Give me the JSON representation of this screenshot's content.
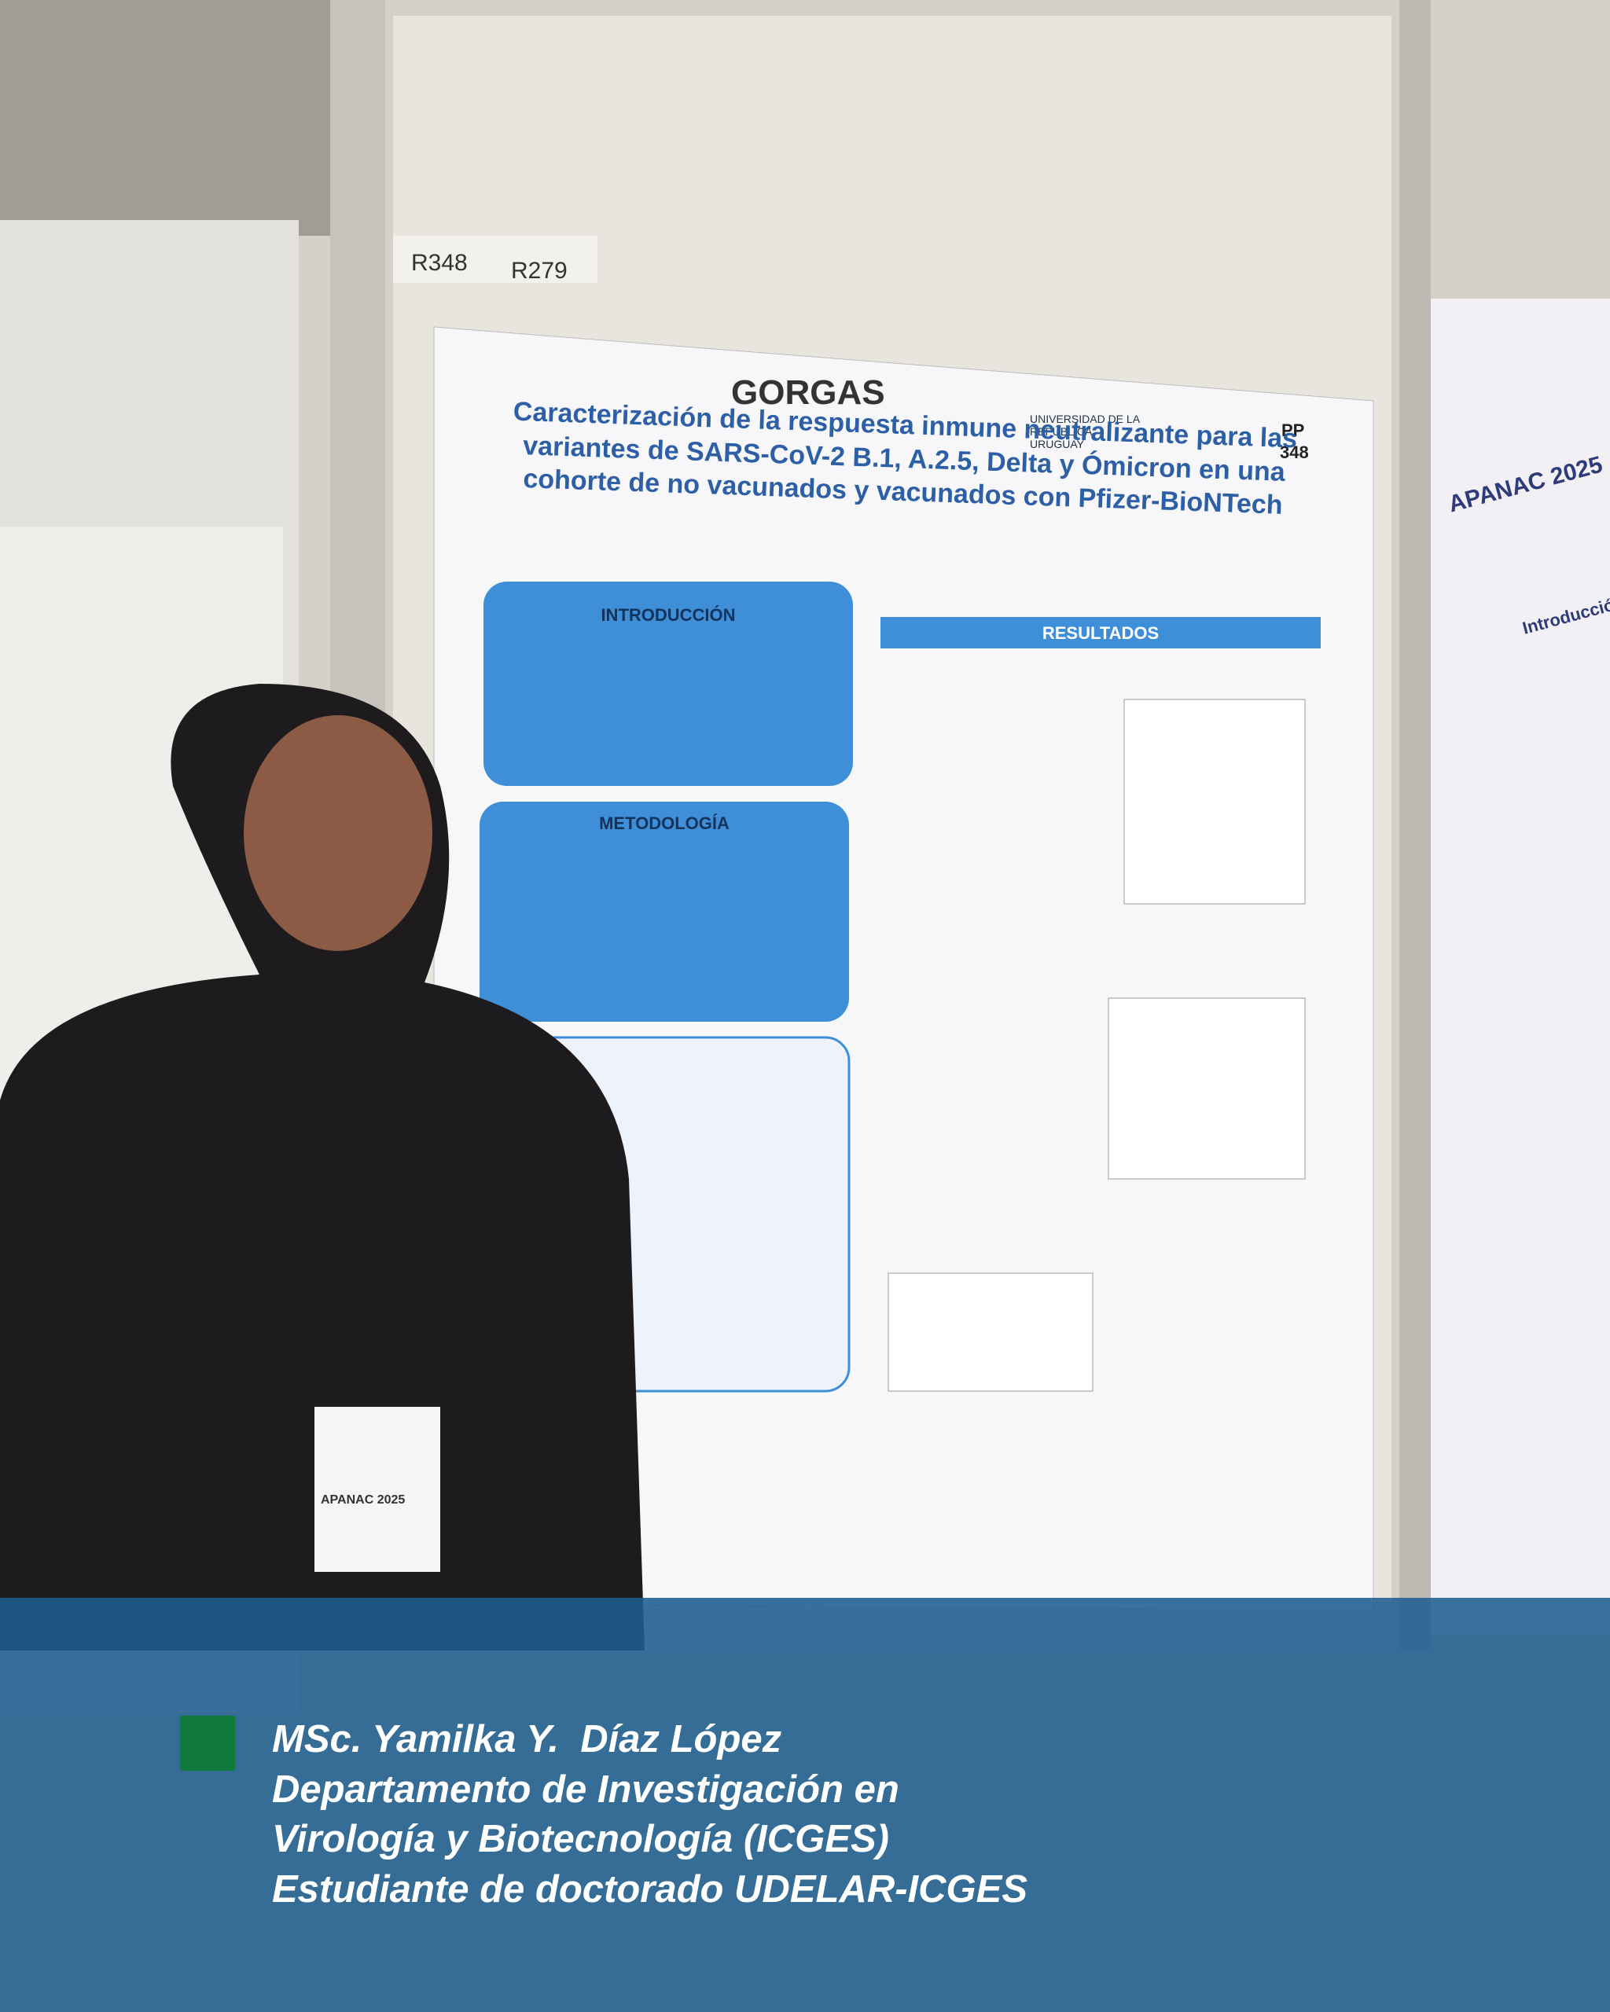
{
  "booth_labels": [
    "R348",
    "R279"
  ],
  "poster": {
    "logo": "GORGAS",
    "university": "UNIVERSIDAD DE LA REPÚBLICA URUGUAY",
    "pp_label": "PP",
    "pp_number": "348",
    "title": "Caracterización de la respuesta inmune neutralizante para las variantes de SARS-CoV-2 B.1, A.2.5, Delta y Ómicron en una cohorte de no vacunados y vacunados con Pfizer-BioNTech",
    "sections": [
      "INTRODUCCIÓN",
      "METODOLOGÍA",
      "RESULTADOS"
    ]
  },
  "side_poster": {
    "title": "APANAC 2025",
    "section": "Introducción"
  },
  "badge": "APANAC 2025",
  "caption": [
    "MSc. Yamilka Y.  Díaz López",
    "Departamento de Investigación en",
    "Virología y Biotecnología (ICGES)",
    "Estudiante de doctorado UDELAR-ICGES"
  ]
}
